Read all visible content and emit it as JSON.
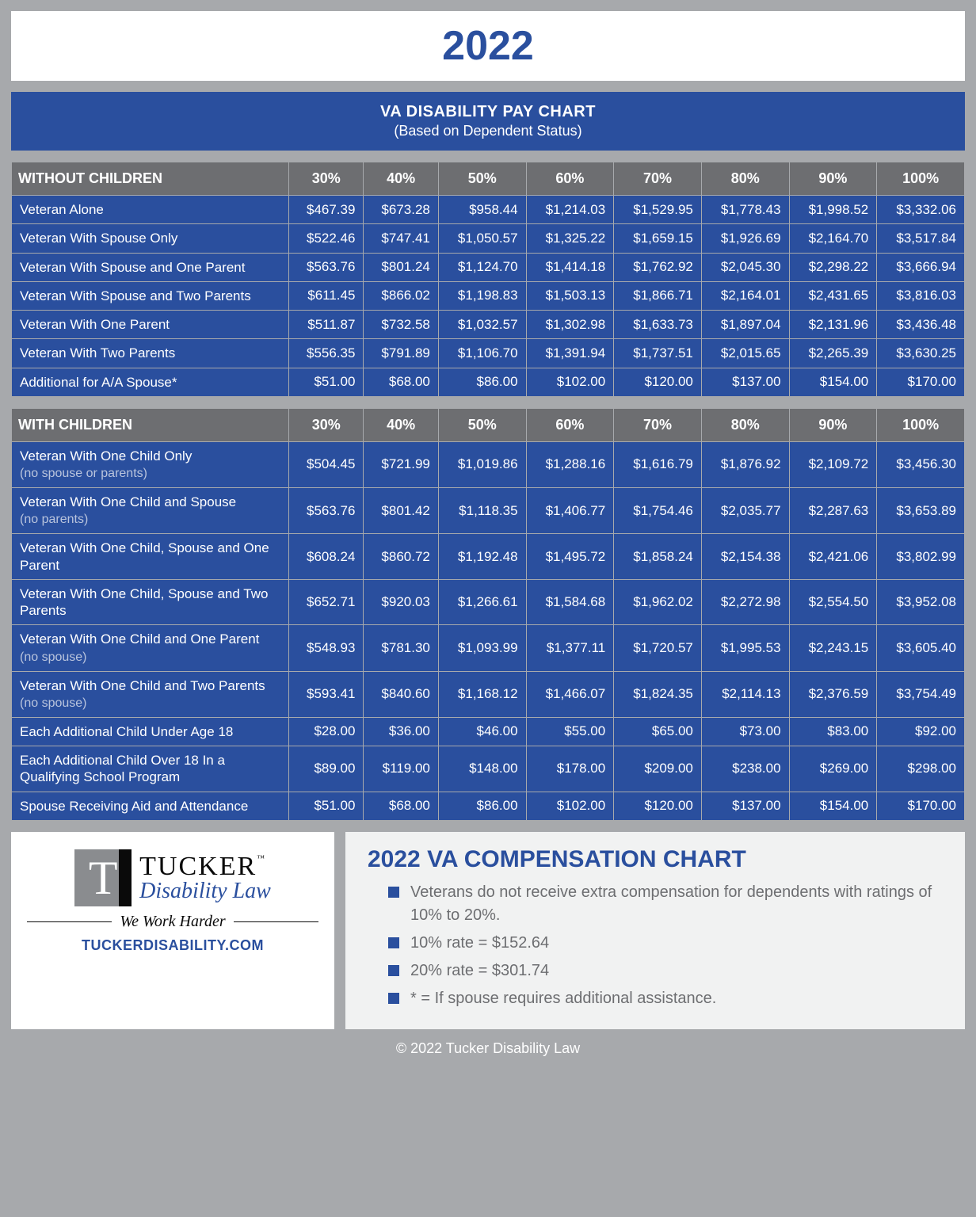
{
  "year": "2022",
  "chart_title": "VA DISABILITY PAY CHART",
  "chart_subtitle": "(Based on Dependent Status)",
  "percent_headers": [
    "30%",
    "40%",
    "50%",
    "60%",
    "70%",
    "80%",
    "90%",
    "100%"
  ],
  "table1": {
    "heading": "WITHOUT CHILDREN",
    "rows": [
      {
        "label": "Veteran Alone",
        "sub": "",
        "values": [
          "$467.39",
          "$673.28",
          "$958.44",
          "$1,214.03",
          "$1,529.95",
          "$1,778.43",
          "$1,998.52",
          "$3,332.06"
        ]
      },
      {
        "label": "Veteran With Spouse Only",
        "sub": "",
        "values": [
          "$522.46",
          "$747.41",
          "$1,050.57",
          "$1,325.22",
          "$1,659.15",
          "$1,926.69",
          "$2,164.70",
          "$3,517.84"
        ]
      },
      {
        "label": "Veteran With Spouse and One Parent",
        "sub": "",
        "values": [
          "$563.76",
          "$801.24",
          "$1,124.70",
          "$1,414.18",
          "$1,762.92",
          "$2,045.30",
          "$2,298.22",
          "$3,666.94"
        ]
      },
      {
        "label": "Veteran With Spouse and Two Parents",
        "sub": "",
        "values": [
          "$611.45",
          "$866.02",
          "$1,198.83",
          "$1,503.13",
          "$1,866.71",
          "$2,164.01",
          "$2,431.65",
          "$3,816.03"
        ]
      },
      {
        "label": "Veteran With One Parent",
        "sub": "",
        "values": [
          "$511.87",
          "$732.58",
          "$1,032.57",
          "$1,302.98",
          "$1,633.73",
          "$1,897.04",
          "$2,131.96",
          "$3,436.48"
        ]
      },
      {
        "label": "Veteran With Two Parents",
        "sub": "",
        "values": [
          "$556.35",
          "$791.89",
          "$1,106.70",
          "$1,391.94",
          "$1,737.51",
          "$2,015.65",
          "$2,265.39",
          "$3,630.25"
        ]
      },
      {
        "label": "Additional for A/A Spouse*",
        "sub": "",
        "values": [
          "$51.00",
          "$68.00",
          "$86.00",
          "$102.00",
          "$120.00",
          "$137.00",
          "$154.00",
          "$170.00"
        ]
      }
    ]
  },
  "table2": {
    "heading": "WITH CHILDREN",
    "rows": [
      {
        "label": "Veteran With One Child Only",
        "sub": "(no spouse or parents)",
        "values": [
          "$504.45",
          "$721.99",
          "$1,019.86",
          "$1,288.16",
          "$1,616.79",
          "$1,876.92",
          "$2,109.72",
          "$3,456.30"
        ]
      },
      {
        "label": "Veteran With One Child and Spouse",
        "sub": "(no parents)",
        "values": [
          "$563.76",
          "$801.42",
          "$1,118.35",
          "$1,406.77",
          "$1,754.46",
          "$2,035.77",
          "$2,287.63",
          "$3,653.89"
        ]
      },
      {
        "label": "Veteran With One Child, Spouse and One Parent",
        "sub": "",
        "values": [
          "$608.24",
          "$860.72",
          "$1,192.48",
          "$1,495.72",
          "$1,858.24",
          "$2,154.38",
          "$2,421.06",
          "$3,802.99"
        ]
      },
      {
        "label": "Veteran With One Child, Spouse and Two Parents",
        "sub": "",
        "values": [
          "$652.71",
          "$920.03",
          "$1,266.61",
          "$1,584.68",
          "$1,962.02",
          "$2,272.98",
          "$2,554.50",
          "$3,952.08"
        ]
      },
      {
        "label": "Veteran With One Child and One Parent ",
        "sub": "(no spouse)",
        "values": [
          "$548.93",
          "$781.30",
          "$1,093.99",
          "$1,377.11",
          "$1,720.57",
          "$1,995.53",
          "$2,243.15",
          "$3,605.40"
        ]
      },
      {
        "label": "Veteran With One Child and Two Parents ",
        "sub": "(no spouse)",
        "values": [
          "$593.41",
          "$840.60",
          "$1,168.12",
          "$1,466.07",
          "$1,824.35",
          "$2,114.13",
          "$2,376.59",
          "$3,754.49"
        ]
      },
      {
        "label": "Each Additional Child Under Age 18",
        "sub": "",
        "values": [
          "$28.00",
          "$36.00",
          "$46.00",
          "$55.00",
          "$65.00",
          "$73.00",
          "$83.00",
          "$92.00"
        ]
      },
      {
        "label": "Each Additional Child Over 18 In a Qualifying School Program",
        "sub": "",
        "values": [
          "$89.00",
          "$119.00",
          "$148.00",
          "$178.00",
          "$209.00",
          "$238.00",
          "$269.00",
          "$298.00"
        ]
      },
      {
        "label": "Spouse Receiving Aid and Attendance",
        "sub": "",
        "values": [
          "$51.00",
          "$68.00",
          "$86.00",
          "$102.00",
          "$120.00",
          "$137.00",
          "$154.00",
          "$170.00"
        ]
      }
    ]
  },
  "logo": {
    "line1": "TUCKER",
    "line2": "Disability Law",
    "tagline": "We Work Harder",
    "url": "TUCKERDISABILITY.COM"
  },
  "notes": {
    "title": "2022 VA COMPENSATION CHART",
    "items": [
      "Veterans do not receive extra compensation for dependents with ratings of 10% to 20%.",
      "10% rate = $152.64",
      "20% rate = $301.74",
      "* = If spouse requires additional assistance."
    ]
  },
  "copyright": "© 2022 Tucker Disability Law",
  "colors": {
    "page_bg": "#a7a9ac",
    "primary_blue": "#2a4f9e",
    "header_gray": "#6d6e71",
    "notes_bg": "#f1f2f2",
    "white": "#ffffff",
    "sub_text": "#b9c4dd"
  }
}
